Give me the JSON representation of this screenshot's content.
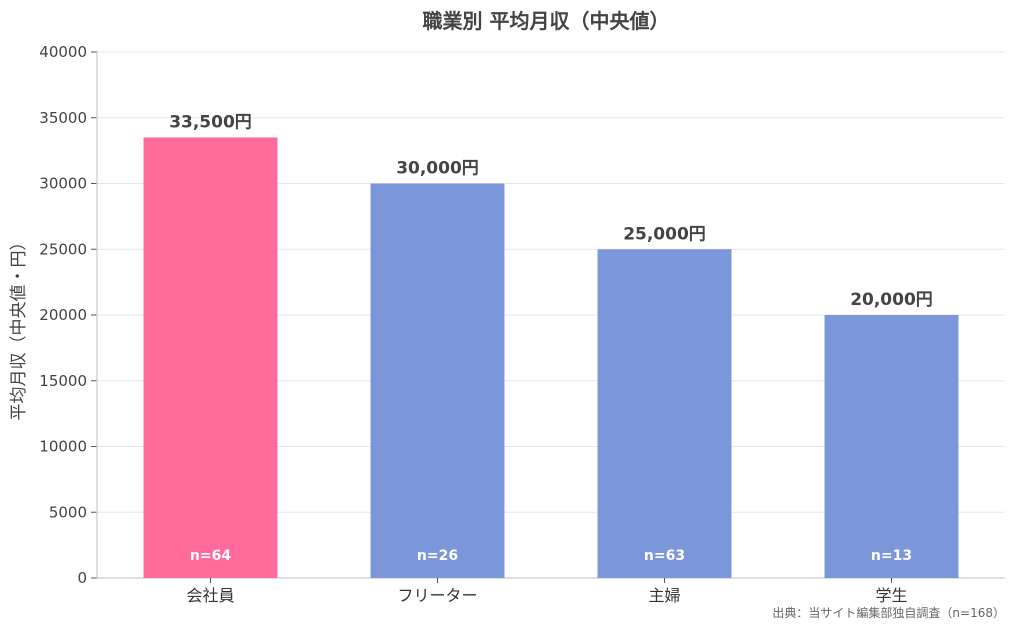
{
  "chart_data": {
    "type": "bar",
    "title": "職業別 平均月収（中央値）",
    "ylabel": "平均月収（中央値・円）",
    "xlabel": "",
    "ylim": [
      0,
      40000
    ],
    "yticks": [
      0,
      5000,
      10000,
      15000,
      20000,
      25000,
      30000,
      35000,
      40000
    ],
    "categories": [
      "会社員",
      "フリーター",
      "主婦",
      "学生"
    ],
    "values": [
      33500,
      30000,
      25000,
      20000
    ],
    "value_labels": [
      "33,500円",
      "30,000円",
      "25,000円",
      "20,000円"
    ],
    "counts": [
      "n=64",
      "n=26",
      "n=63",
      "n=13"
    ],
    "colors": [
      "#ff6b9b",
      "#7b97d9",
      "#7b97d9",
      "#7b97d9"
    ],
    "grid": true,
    "source": "出典：当サイト編集部独自調査（n=168）"
  }
}
